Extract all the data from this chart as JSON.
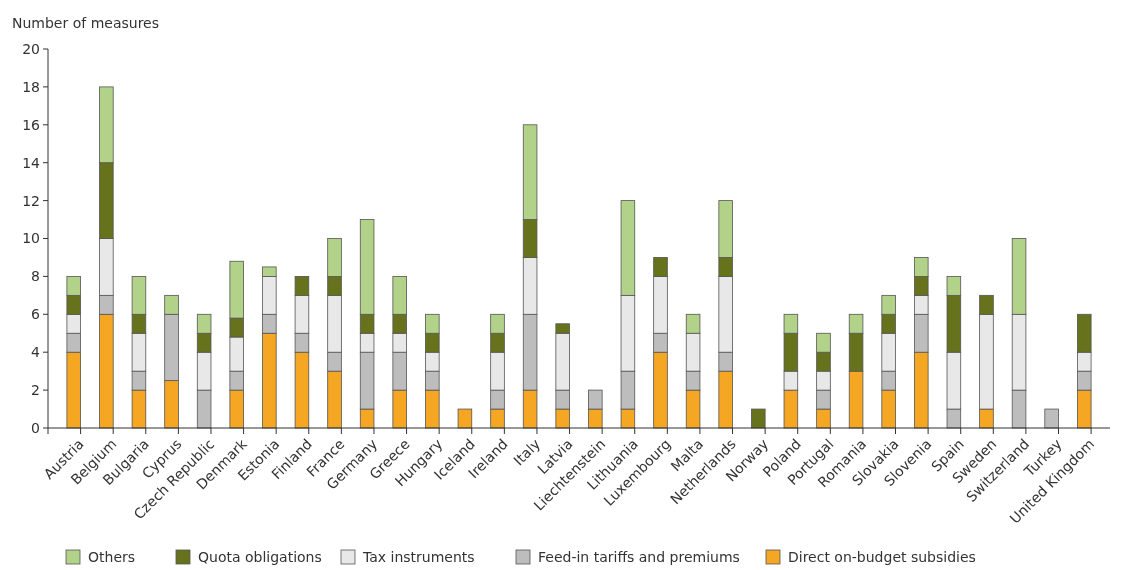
{
  "chart_data": {
    "type": "bar",
    "stacked": true,
    "ylabel": "Number of measures",
    "categories": [
      "Austria",
      "Belgium",
      "Bulgaria",
      "Cyprus",
      "Czech Republic",
      "Denmark",
      "Estonia",
      "Finland",
      "France",
      "Germany",
      "Greece",
      "Hungary",
      "Iceland",
      "Ireland",
      "Italy",
      "Latvia",
      "Liechtenstein",
      "Lithuania",
      "Luxembourg",
      "Malta",
      "Netherlands",
      "Norway",
      "Poland",
      "Portugal",
      "Romania",
      "Slovakia",
      "Slovenia",
      "Spain",
      "Sweden",
      "Switzerland",
      "Turkey",
      "United Kingdom"
    ],
    "series": [
      {
        "name": "Direct on-budget subsidies",
        "color": "#f5a623",
        "values": [
          4,
          6,
          2,
          2.5,
          0,
          2,
          5,
          4,
          3,
          1,
          2,
          2,
          1,
          1,
          2,
          1,
          1,
          1,
          4,
          2,
          3,
          0,
          2,
          1,
          3,
          2,
          4,
          0,
          1,
          0,
          0,
          2
        ]
      },
      {
        "name": "Feed-in tariffs and premiums",
        "color": "#bdbdbd",
        "values": [
          1,
          1,
          1,
          3.5,
          2,
          1,
          1,
          1,
          1,
          3,
          2,
          1,
          0,
          1,
          4,
          1,
          1,
          2,
          1,
          1,
          1,
          0,
          0,
          1,
          0,
          1,
          2,
          1,
          0,
          2,
          1,
          1
        ]
      },
      {
        "name": "Tax instruments",
        "color": "#e8e8e8",
        "values": [
          1,
          3,
          2,
          0,
          2,
          1.8,
          2,
          2,
          3,
          1,
          1,
          1,
          0,
          2,
          3,
          3,
          0,
          4,
          3,
          2,
          4,
          0,
          1,
          1,
          0,
          2,
          1,
          3,
          5,
          4,
          0,
          1
        ]
      },
      {
        "name": "Quota obligations",
        "color": "#66731c",
        "values": [
          1,
          4,
          1,
          0,
          1,
          1,
          0,
          1,
          1,
          1,
          1,
          1,
          0,
          1,
          2,
          0.5,
          0,
          0,
          1,
          0,
          1,
          1,
          2,
          1,
          2,
          1,
          1,
          3,
          1,
          0,
          0,
          2
        ]
      },
      {
        "name": "Others",
        "color": "#b2d28a",
        "values": [
          1,
          4,
          2,
          1,
          1,
          3,
          0.5,
          0,
          2,
          5,
          2,
          1,
          0,
          1,
          5,
          0,
          0,
          5,
          0,
          1,
          3,
          0,
          1,
          1,
          1,
          1,
          1,
          1,
          0,
          4,
          0,
          0
        ]
      }
    ],
    "ylim": [
      0,
      20
    ],
    "yticks": [
      0,
      2,
      4,
      6,
      8,
      10,
      12,
      14,
      16,
      18,
      20
    ],
    "grid": false,
    "legend": "bottom"
  }
}
